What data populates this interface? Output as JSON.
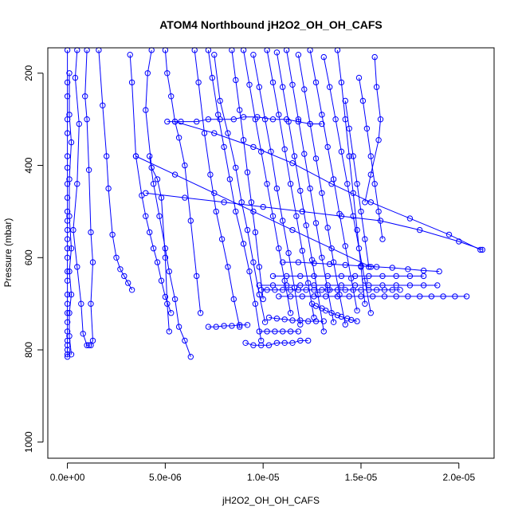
{
  "chart_data": {
    "type": "scatter",
    "title": "ATOM4 Northbound jH2O2_OH_OH_CAFS",
    "xlabel": "jH2O2_OH_OH_CAFS",
    "ylabel": "Pressure (mbar)",
    "xlim": [
      -1e-06,
      2.18e-05
    ],
    "ylim": [
      1035,
      145
    ],
    "y_reversed": true,
    "x_ticks": [
      0,
      5e-06,
      1e-05,
      1.5e-05,
      2e-05
    ],
    "x_tick_labels": [
      "0.0e+00",
      "5.0e-06",
      "1.0e-05",
      "1.5e-05",
      "2.0e-05"
    ],
    "y_ticks": [
      200,
      400,
      600,
      800,
      1000
    ],
    "y_tick_labels": [
      "200",
      "400",
      "600",
      "800",
      "1000"
    ],
    "grid": false,
    "legend": "none",
    "colors": {
      "series": "#0000ff",
      "axes": "#000000"
    },
    "series": [
      {
        "x": [
          0.0,
          0.0,
          0.0,
          0.0,
          0.0,
          0.0,
          0.0,
          0.0,
          0.0,
          0.0,
          0.0,
          0.0,
          0.0,
          0.0,
          0.0,
          0.0,
          0.0,
          0.0,
          0.0,
          0.0,
          0.0,
          0.0,
          0.0,
          0.0,
          0.0,
          0.0,
          0.0
        ],
        "y": [
          150,
          220,
          250,
          300,
          330,
          380,
          405,
          440,
          470,
          500,
          520,
          540,
          560,
          580,
          600,
          630,
          650,
          680,
          700,
          720,
          740,
          760,
          780,
          790,
          800,
          810,
          815
        ]
      },
      {
        "x": [
          1e-07,
          1e-07,
          2e-07,
          1e-07,
          1e-07,
          2e-07,
          1e-07,
          2e-07,
          1e-07,
          1e-07,
          2e-07
        ],
        "y": [
          200,
          290,
          350,
          430,
          510,
          580,
          630,
          680,
          720,
          770,
          810
        ]
      },
      {
        "x": [
          5e-07,
          4e-07,
          6e-07,
          5e-07,
          3e-07,
          5e-07,
          7e-07,
          8e-07,
          1e-06,
          1.1e-06
        ],
        "y": [
          150,
          210,
          310,
          440,
          540,
          620,
          700,
          765,
          790,
          790
        ]
      },
      {
        "x": [
          1e-06,
          9e-07,
          1e-06,
          1.1e-06,
          1.2e-06,
          1.3e-06,
          1.2e-06,
          1.3e-06,
          1.2e-06
        ],
        "y": [
          150,
          250,
          300,
          410,
          545,
          610,
          700,
          780,
          790
        ]
      },
      {
        "x": [
          1.6e-06,
          1.8e-06,
          2e-06,
          2.1e-06,
          2.3e-06,
          2.5e-06,
          2.7e-06,
          2.9e-06,
          3.1e-06,
          3.3e-06
        ],
        "y": [
          150,
          270,
          380,
          450,
          550,
          600,
          625,
          640,
          655,
          670
        ]
      },
      {
        "x": [
          3.2e-06,
          3.3e-06,
          3.5e-06,
          3.8e-06,
          4e-06,
          4.2e-06,
          4.4e-06,
          4.6e-06,
          4.8e-06,
          5e-06,
          5.3e-06
        ],
        "y": [
          160,
          220,
          380,
          465,
          510,
          545,
          580,
          610,
          650,
          685,
          720
        ]
      },
      {
        "x": [
          4.3e-06,
          4.1e-06,
          4e-06,
          4.3e-06,
          4.6e-06,
          4.8e-06,
          5e-06,
          5.1e-06,
          5.2e-06
        ],
        "y": [
          150,
          200,
          280,
          405,
          430,
          470,
          600,
          700,
          760
        ]
      },
      {
        "x": [
          4.2e-06,
          4.4e-06,
          4.7e-06,
          5e-06,
          5.2e-06,
          5.5e-06,
          5.7e-06,
          6e-06,
          6.3e-06
        ],
        "y": [
          380,
          440,
          510,
          580,
          630,
          690,
          750,
          780,
          815
        ]
      },
      {
        "x": [
          5e-06,
          5.1e-06,
          5.3e-06,
          5.5e-06,
          5.7e-06,
          6e-06,
          6.3e-06,
          6.6e-06,
          6.8e-06
        ],
        "y": [
          150,
          200,
          250,
          305,
          340,
          400,
          520,
          640,
          720
        ]
      },
      {
        "x": [
          5.1e-06,
          5.8e-06,
          6.6e-06,
          7.2e-06,
          7.8e-06,
          8.5e-06,
          9e-06,
          9.7e-06,
          1.05e-05,
          1.12e-05,
          1.18e-05,
          1.24e-05,
          1.3e-05
        ],
        "y": [
          305,
          305,
          305,
          300,
          300,
          300,
          295,
          295,
          300,
          300,
          305,
          310,
          310
        ]
      },
      {
        "x": [
          6.5e-06,
          6.7e-06,
          7e-06,
          7.3e-06,
          7.6e-06,
          7.9e-06,
          8.2e-06,
          8.5e-06,
          8.8e-06
        ],
        "y": [
          150,
          220,
          330,
          420,
          500,
          560,
          620,
          690,
          750
        ]
      },
      {
        "x": [
          7.2e-06,
          7.4e-06,
          7.7e-06,
          8e-06,
          8.3e-06,
          8.6e-06,
          9e-06,
          9.3e-06,
          9.6e-06,
          9.9e-06
        ],
        "y": [
          150,
          210,
          290,
          360,
          430,
          500,
          570,
          630,
          700,
          780
        ]
      },
      {
        "x": [
          7.5e-06,
          7.8e-06,
          8.2e-06,
          8.6e-06,
          8.9e-06,
          9.2e-06,
          9.5e-06,
          9.8e-06,
          1.01e-05
        ],
        "y": [
          160,
          260,
          330,
          405,
          480,
          540,
          610,
          680,
          740
        ]
      },
      {
        "x": [
          8.4e-06,
          8.6e-06,
          8.8e-06,
          9e-06,
          9.2e-06,
          9.4e-06,
          9.6e-06,
          9.8e-06,
          1e-05
        ],
        "y": [
          150,
          215,
          280,
          345,
          415,
          480,
          545,
          620,
          690
        ]
      },
      {
        "x": [
          9e-06,
          9.3e-06,
          9.6e-06,
          9.9e-06,
          1.02e-05,
          1.05e-05,
          1.08e-05,
          1.11e-05,
          1.14e-05
        ],
        "y": [
          150,
          225,
          300,
          370,
          440,
          510,
          580,
          650,
          720
        ]
      },
      {
        "x": [
          9.5e-06,
          9.8e-06,
          1.01e-05,
          1.04e-05,
          1.07e-05,
          1.1e-05,
          1.13e-05,
          1.16e-05,
          1.19e-05
        ],
        "y": [
          160,
          230,
          300,
          370,
          450,
          520,
          590,
          665,
          745
        ]
      },
      {
        "x": [
          1.02e-05,
          1.05e-05,
          1.08e-05,
          1.11e-05,
          1.14e-05,
          1.17e-05,
          1.2e-05,
          1.23e-05,
          1.26e-05
        ],
        "y": [
          150,
          220,
          290,
          365,
          440,
          510,
          585,
          655,
          730
        ]
      },
      {
        "x": [
          1.07e-05,
          1.1e-05,
          1.13e-05,
          1.16e-05,
          1.19e-05,
          1.22e-05,
          1.25e-05,
          1.28e-05,
          1.31e-05
        ],
        "y": [
          155,
          230,
          305,
          380,
          455,
          530,
          605,
          680,
          760
        ]
      },
      {
        "x": [
          1.12e-05,
          1.15e-05,
          1.18e-05,
          1.21e-05,
          1.24e-05,
          1.27e-05,
          1.3e-05,
          1.33e-05,
          1.36e-05
        ],
        "y": [
          150,
          225,
          300,
          375,
          450,
          525,
          600,
          670,
          740
        ]
      },
      {
        "x": [
          1.18e-05,
          1.21e-05,
          1.24e-05,
          1.27e-05,
          1.3e-05,
          1.33e-05,
          1.36e-05,
          1.39e-05,
          1.42e-05
        ],
        "y": [
          160,
          235,
          310,
          385,
          460,
          535,
          610,
          680,
          745
        ]
      },
      {
        "x": [
          1.24e-05,
          1.27e-05,
          1.3e-05,
          1.33e-05,
          1.36e-05,
          1.39e-05,
          1.42e-05,
          1.45e-05,
          1.48e-05
        ],
        "y": [
          150,
          220,
          290,
          360,
          430,
          505,
          575,
          645,
          715
        ]
      },
      {
        "x": [
          1.31e-05,
          1.34e-05,
          1.37e-05,
          1.4e-05,
          1.43e-05,
          1.46e-05,
          1.49e-05,
          1.52e-05,
          1.55e-05
        ],
        "y": [
          165,
          230,
          300,
          370,
          440,
          510,
          580,
          650,
          720
        ]
      },
      {
        "x": [
          1.38e-05,
          1.4e-05,
          1.42e-05,
          1.44e-05,
          1.46e-05,
          1.48e-05,
          1.5e-05,
          1.52e-05
        ],
        "y": [
          150,
          220,
          300,
          380,
          460,
          540,
          620,
          700
        ]
      },
      {
        "x": [
          1.42e-05,
          1.44e-05,
          1.46e-05,
          1.48e-05,
          1.5e-05,
          1.52e-05,
          1.54e-05
        ],
        "y": [
          260,
          320,
          380,
          440,
          500,
          560,
          620
        ]
      },
      {
        "x": [
          1.49e-05,
          1.51e-05,
          1.53e-05,
          1.55e-05,
          1.57e-05,
          1.59e-05,
          1.61e-05
        ],
        "y": [
          210,
          260,
          320,
          380,
          440,
          500,
          560
        ]
      },
      {
        "x": [
          1.57e-05,
          1.58e-05,
          1.6e-05,
          1.59e-05,
          1.55e-05,
          1.52e-05
        ],
        "y": [
          165,
          230,
          300,
          345,
          420,
          480
        ]
      },
      {
        "x": [
          5.5e-06,
          7.5e-06,
          9.5e-06,
          1.15e-05,
          1.35e-05,
          1.55e-05,
          1.75e-05,
          1.95e-05,
          2.11e-05
        ],
        "y": [
          305,
          330,
          360,
          395,
          440,
          480,
          515,
          550,
          583
        ]
      },
      {
        "x": [
          4e-06,
          6e-06,
          8e-06,
          1e-05,
          1.2e-05,
          1.4e-05,
          1.6e-05,
          1.8e-05,
          2e-05,
          2.12e-05
        ],
        "y": [
          460,
          470,
          480,
          490,
          500,
          510,
          520,
          540,
          565,
          583
        ]
      },
      {
        "x": [
          3.5e-06,
          5.5e-06,
          7.5e-06,
          9.5e-06,
          1.15e-05,
          1.35e-05,
          1.55e-05
        ],
        "y": [
          380,
          420,
          460,
          500,
          540,
          580,
          620
        ]
      },
      {
        "x": [
          1.1e-05,
          1.18e-05,
          1.26e-05,
          1.34e-05,
          1.42e-05,
          1.5e-05,
          1.58e-05,
          1.66e-05,
          1.74e-05,
          1.82e-05,
          1.9e-05
        ],
        "y": [
          610,
          610,
          612,
          614,
          616,
          618,
          620,
          622,
          625,
          628,
          630
        ]
      },
      {
        "x": [
          1.05e-05,
          1.12e-05,
          1.19e-05,
          1.26e-05,
          1.33e-05,
          1.4e-05,
          1.47e-05,
          1.54e-05,
          1.61e-05,
          1.68e-05,
          1.75e-05,
          1.82e-05
        ],
        "y": [
          640,
          640,
          640,
          640,
          640,
          640,
          640,
          640,
          640,
          640,
          640,
          640
        ]
      },
      {
        "x": [
          9.8e-06,
          1.05e-05,
          1.12e-05,
          1.19e-05,
          1.26e-05,
          1.33e-05,
          1.4e-05,
          1.47e-05,
          1.54e-05,
          1.61e-05,
          1.68e-05,
          1.75e-05,
          1.82e-05,
          1.89e-05
        ],
        "y": [
          660,
          660,
          660,
          660,
          660,
          660,
          660,
          660,
          660,
          660,
          660,
          660,
          660,
          660
        ]
      },
      {
        "x": [
          9.9e-06,
          1.02e-05,
          1.06e-05,
          1.1e-05,
          1.14e-05,
          1.18e-05,
          1.22e-05,
          1.26e-05,
          1.3e-05,
          1.34e-05,
          1.38e-05,
          1.42e-05,
          1.46e-05,
          1.5e-05,
          1.54e-05,
          1.58e-05,
          1.62e-05,
          1.66e-05,
          1.7e-05
        ],
        "y": [
          670,
          670,
          670,
          670,
          670,
          670,
          670,
          670,
          670,
          670,
          670,
          670,
          670,
          670,
          670,
          670,
          670,
          670,
          670
        ]
      },
      {
        "x": [
          1.08e-05,
          1.14e-05,
          1.2e-05,
          1.26e-05,
          1.32e-05,
          1.38e-05,
          1.44e-05,
          1.5e-05,
          1.56e-05,
          1.62e-05,
          1.68e-05,
          1.74e-05,
          1.8e-05,
          1.86e-05,
          1.92e-05,
          1.98e-05,
          2.04e-05
        ],
        "y": [
          684,
          684,
          684,
          684,
          684,
          684,
          684,
          684,
          684,
          684,
          684,
          684,
          684,
          684,
          684,
          684,
          684
        ]
      },
      {
        "x": [
          1.25e-05,
          1.27e-05,
          1.3e-05,
          1.32e-05,
          1.35e-05,
          1.38e-05,
          1.4e-05,
          1.43e-05,
          1.45e-05,
          1.48e-05
        ],
        "y": [
          700,
          705,
          710,
          715,
          720,
          725,
          728,
          732,
          735,
          738
        ]
      },
      {
        "x": [
          9.1e-06,
          9.5e-06,
          9.9e-06,
          1.03e-05,
          1.07e-05,
          1.11e-05,
          1.15e-05,
          1.19e-05,
          1.23e-05
        ],
        "y": [
          785,
          790,
          790,
          790,
          785,
          785,
          785,
          780,
          780
        ]
      },
      {
        "x": [
          9.8e-06,
          1.02e-05,
          1.06e-05,
          1.1e-05,
          1.14e-05,
          1.18e-05
        ],
        "y": [
          760,
          760,
          760,
          760,
          760,
          760
        ]
      },
      {
        "x": [
          7.2e-06,
          7.6e-06,
          8e-06,
          8.4e-06,
          8.8e-06,
          9.2e-06
        ],
        "y": [
          750,
          750,
          748,
          748,
          746,
          746
        ]
      },
      {
        "x": [
          1.03e-05,
          1.07e-05,
          1.11e-05,
          1.15e-05,
          1.19e-05,
          1.23e-05,
          1.27e-05,
          1.31e-05
        ],
        "y": [
          730,
          732,
          734,
          736,
          736,
          738,
          738,
          738
        ]
      }
    ]
  }
}
